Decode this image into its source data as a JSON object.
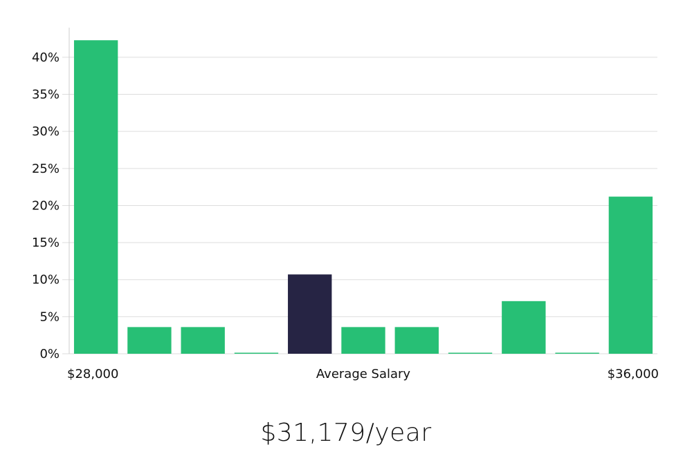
{
  "chart_data": {
    "type": "bar",
    "values": [
      42.3,
      3.6,
      3.6,
      0.1,
      10.7,
      3.6,
      3.6,
      0.1,
      7.1,
      0.1,
      21.2
    ],
    "highlight_index": 4,
    "yticks": [
      "0%",
      "5%",
      "10%",
      "15%",
      "20%",
      "25%",
      "30%",
      "35%",
      "40%"
    ],
    "ylim": [
      0,
      44
    ],
    "grid": true,
    "x_labels": {
      "left": "$28,000",
      "center": "Average Salary",
      "right": "$36,000"
    }
  },
  "colors": {
    "bar": "#27bf75",
    "bar_highlight": "#262444",
    "grid": "#dddddd",
    "axis": "#cccccc"
  },
  "summary": {
    "salary": "$31,179/year"
  }
}
